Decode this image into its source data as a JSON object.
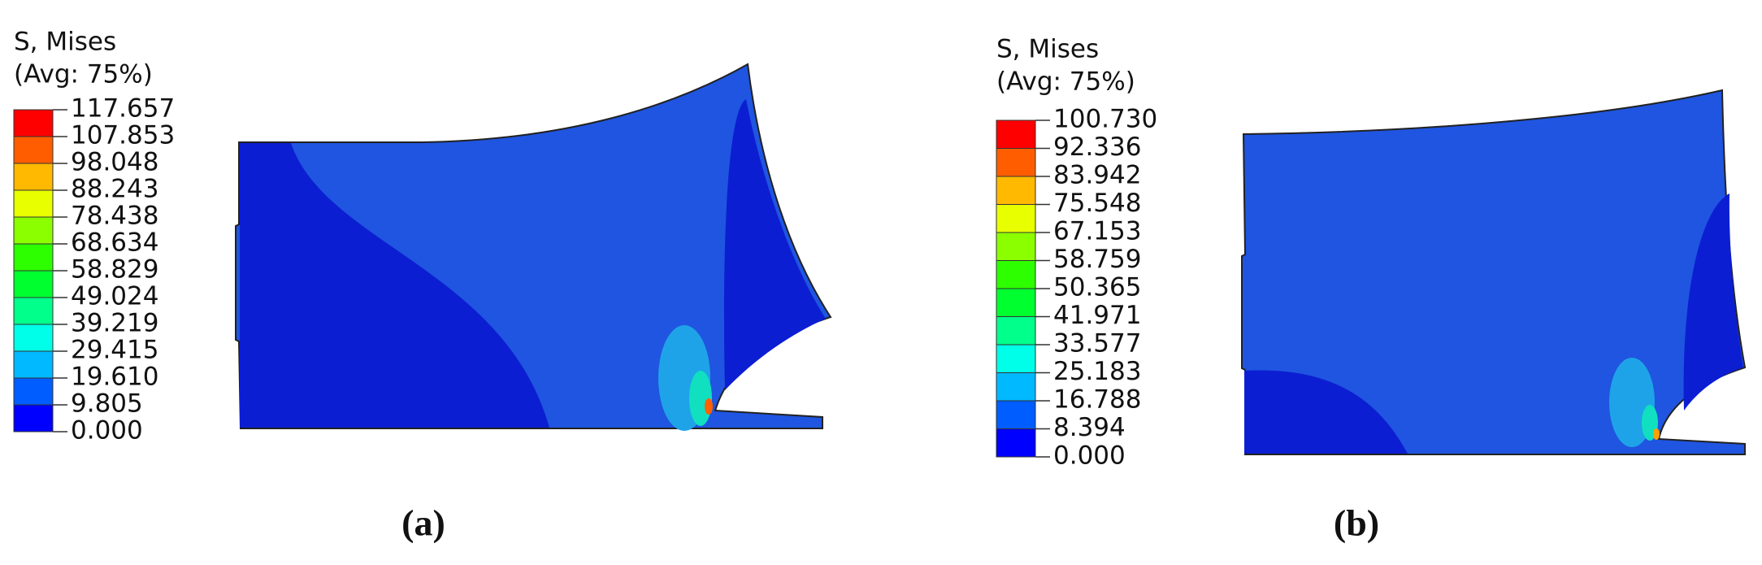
{
  "panels": [
    {
      "legend_title": [
        "S, Mises",
        "(Avg: 75%)"
      ],
      "legend_labels": [
        "117.657",
        "107.853",
        "98.048",
        "88.243",
        "78.438",
        "68.634",
        "58.829",
        "49.024",
        "39.219",
        "29.415",
        "19.610",
        "9.805",
        "0.000"
      ],
      "caption": "(a)"
    },
    {
      "legend_title": [
        "S, Mises",
        "(Avg: 75%)"
      ],
      "legend_labels": [
        "100.730",
        "92.336",
        "83.942",
        "75.548",
        "67.153",
        "58.759",
        "50.365",
        "41.971",
        "33.577",
        "25.183",
        "16.788",
        "8.394",
        "0.000"
      ],
      "caption": "(b)"
    }
  ]
}
